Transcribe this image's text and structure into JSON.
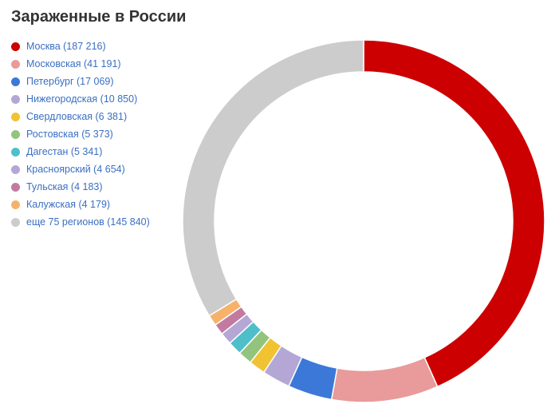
{
  "title": "Зараженные в России",
  "chart_data": {
    "type": "pie",
    "donut": true,
    "title": "Зараженные в России",
    "legend_position": "left",
    "slices": [
      {
        "label": "Москва",
        "value": 187216,
        "color": "#cc0000",
        "legend": "Москва (187 216)"
      },
      {
        "label": "Московская",
        "value": 41191,
        "color": "#e99a9a",
        "legend": "Московская (41 191)"
      },
      {
        "label": "Петербург",
        "value": 17069,
        "color": "#3b78d8",
        "legend": "Петербург (17 069)"
      },
      {
        "label": "Нижегородская",
        "value": 10850,
        "color": "#b4a7d6",
        "legend": "Нижегородская (10 850)"
      },
      {
        "label": "Свердловская",
        "value": 6381,
        "color": "#f1c232",
        "legend": "Свердловская (6 381)"
      },
      {
        "label": "Ростовская",
        "value": 5373,
        "color": "#93c47d",
        "legend": "Ростовская (5 373)"
      },
      {
        "label": "Дагестан",
        "value": 5341,
        "color": "#4ebfc9",
        "legend": "Дагестан (5 341)"
      },
      {
        "label": "Красноярский",
        "value": 4654,
        "color": "#b4a7d6",
        "legend": "Красноярский (4 654)"
      },
      {
        "label": "Тульская",
        "value": 4183,
        "color": "#c27ba0",
        "legend": "Тульская (4 183)"
      },
      {
        "label": "Калужская",
        "value": 4179,
        "color": "#f6b26b",
        "legend": "Калужская (4 179)"
      },
      {
        "label": "еще 75 регионов",
        "value": 145840,
        "color": "#cccccc",
        "legend": "еще 75 регионов (145 840)"
      }
    ]
  }
}
